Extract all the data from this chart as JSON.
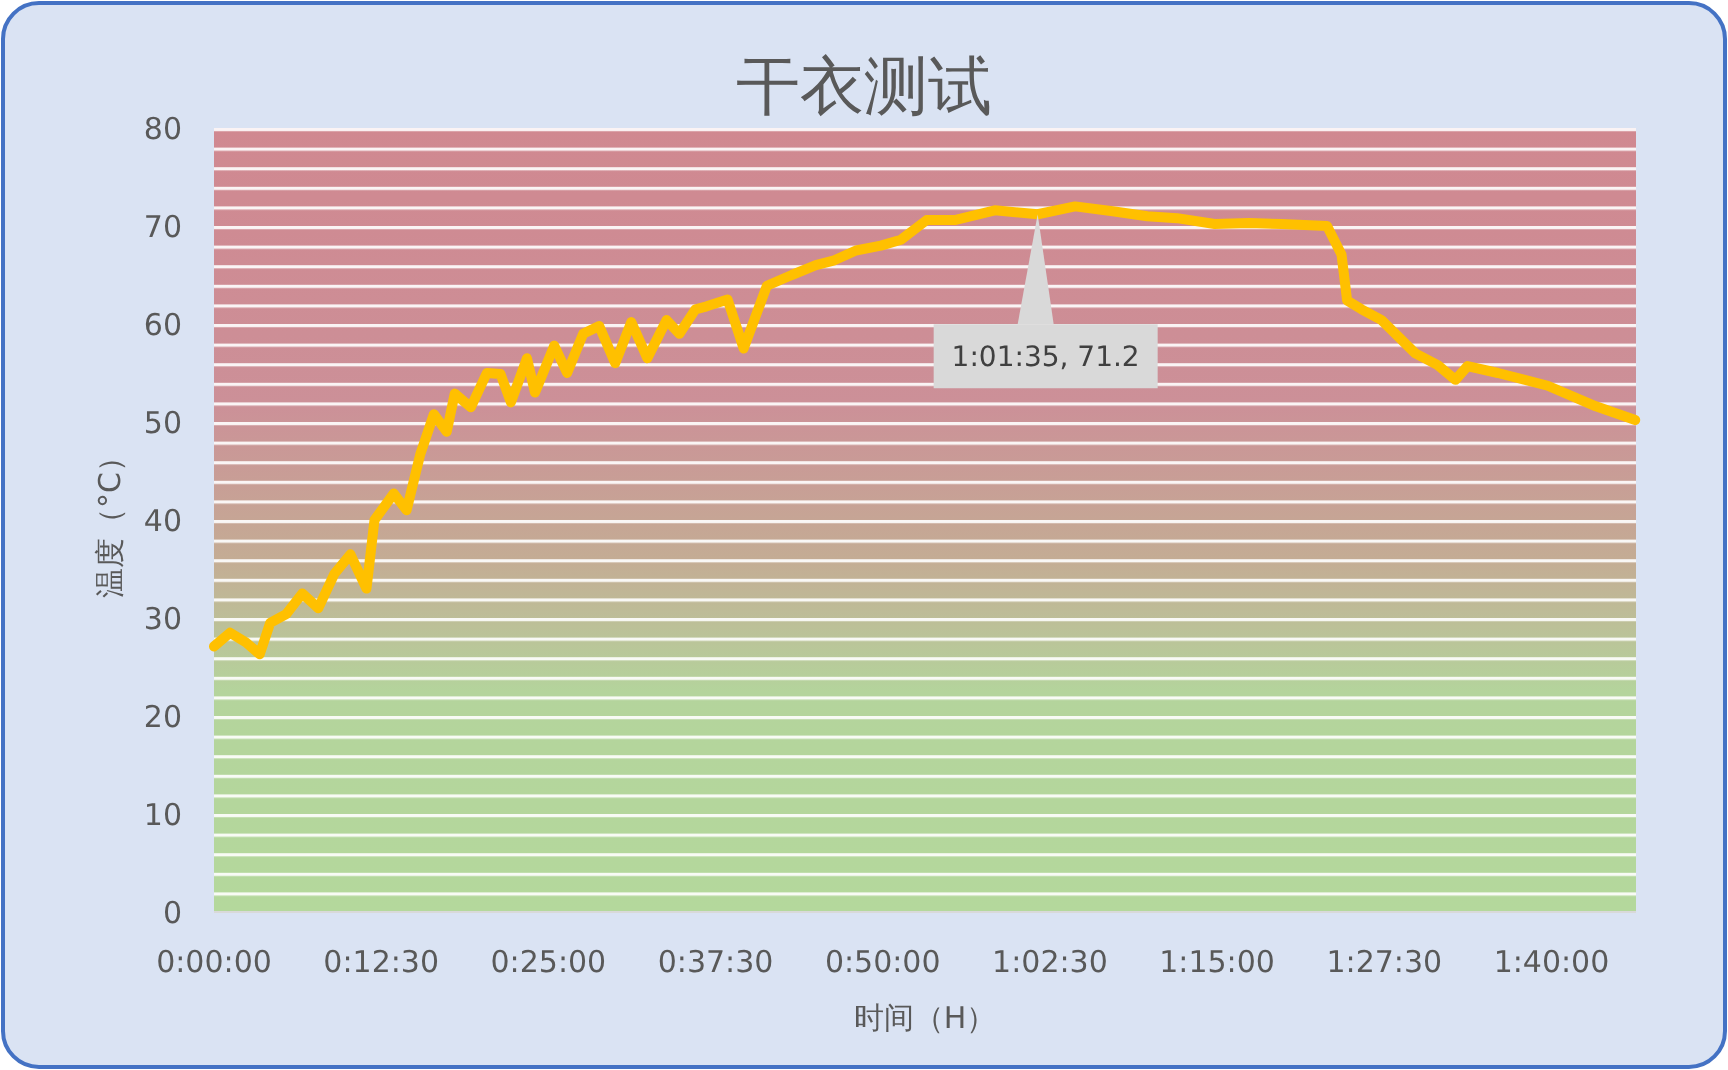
{
  "chart_data": {
    "type": "line",
    "title": "干衣测试",
    "xlabel": "时间（H）",
    "ylabel": "温度（°C）",
    "xlim": [
      0,
      1.772
    ],
    "ylim": [
      0,
      80
    ],
    "yticks": [
      0,
      10,
      20,
      30,
      40,
      50,
      60,
      70,
      80
    ],
    "xticks": [
      {
        "value": 0,
        "label": "0:00:00"
      },
      {
        "value": 0.20833,
        "label": "0:12:30"
      },
      {
        "value": 0.41667,
        "label": "0:25:00"
      },
      {
        "value": 0.625,
        "label": "0:37:30"
      },
      {
        "value": 0.83333,
        "label": "0:50:00"
      },
      {
        "value": 1.04167,
        "label": "1:02:30"
      },
      {
        "value": 1.25,
        "label": "1:15:00"
      },
      {
        "value": 1.45833,
        "label": "1:27:30"
      },
      {
        "value": 1.66667,
        "label": "1:40:00"
      }
    ],
    "marker": "none",
    "line_style": "solid",
    "annotations": [
      {
        "text": "1:01:35, 71.2",
        "x": 1.0264,
        "y": 71.2
      }
    ],
    "series": [
      {
        "color": "#ffc000",
        "x": [
          0,
          0.02,
          0.04,
          0.057,
          0.07,
          0.09,
          0.11,
          0.13,
          0.15,
          0.17,
          0.19,
          0.2,
          0.224,
          0.24,
          0.257,
          0.274,
          0.29,
          0.3,
          0.32,
          0.34,
          0.357,
          0.37,
          0.39,
          0.4,
          0.424,
          0.44,
          0.46,
          0.48,
          0.5,
          0.52,
          0.54,
          0.564,
          0.58,
          0.6,
          0.614,
          0.64,
          0.66,
          0.689,
          0.72,
          0.75,
          0.773,
          0.8,
          0.831,
          0.856,
          0.888,
          0.923,
          0.973,
          1.0264,
          1.073,
          1.12,
          1.163,
          1.2,
          1.247,
          1.29,
          1.33,
          1.387,
          1.405,
          1.412,
          1.43,
          1.455,
          1.497,
          1.525,
          1.547,
          1.562,
          1.6,
          1.662,
          1.722,
          1.771
        ],
        "values": [
          27.1,
          28.5,
          27.5,
          26.3,
          29.5,
          30.4,
          32.5,
          31,
          34.5,
          36.5,
          33,
          40,
          42.7,
          41,
          46.7,
          50.8,
          49,
          52.9,
          51.5,
          55,
          54.9,
          52,
          56.5,
          53,
          57.8,
          55,
          59,
          59.8,
          56,
          60.2,
          56.5,
          60.4,
          59,
          61.5,
          61.8,
          62.5,
          57.5,
          63.9,
          65,
          66,
          66.5,
          67.5,
          68,
          68.6,
          70.6,
          70.6,
          71.6,
          71.2,
          72,
          71.5,
          71,
          70.8,
          70.2,
          70.3,
          70.2,
          70,
          67.1,
          62.4,
          61.5,
          60.4,
          57,
          55.8,
          54.3,
          55.7,
          55,
          53.7,
          51.6,
          50.2
        ]
      }
    ]
  }
}
